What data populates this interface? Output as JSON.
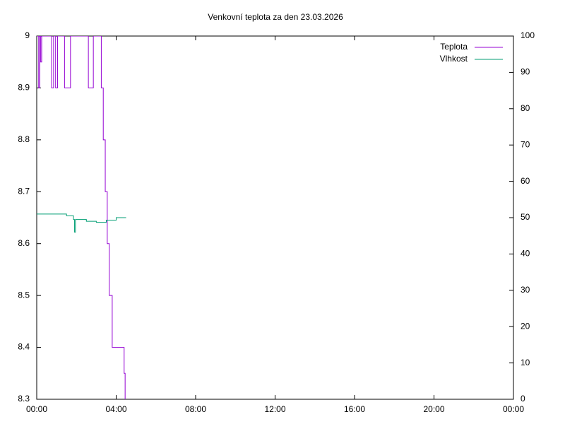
{
  "chart_data": {
    "type": "line",
    "title": "Venkovní teplota za den 23.03.2026",
    "steps": true,
    "legend": "top-right",
    "xlim": [
      0,
      24
    ],
    "xticks": [
      {
        "value": 0,
        "label": "00:00"
      },
      {
        "value": 4,
        "label": "04:00"
      },
      {
        "value": 8,
        "label": "08:00"
      },
      {
        "value": 12,
        "label": "12:00"
      },
      {
        "value": 16,
        "label": "16:00"
      },
      {
        "value": 20,
        "label": "20:00"
      },
      {
        "value": 24,
        "label": "00:00"
      }
    ],
    "ylim": [
      8.3,
      9
    ],
    "yticks": [
      8.3,
      8.4,
      8.5,
      8.6,
      8.7,
      8.8,
      8.9,
      9
    ],
    "y2lim": [
      0,
      100
    ],
    "y2ticks": [
      0,
      10,
      20,
      30,
      40,
      50,
      60,
      70,
      80,
      90,
      100
    ],
    "series": [
      {
        "name": "Teplota",
        "color": "#9400d3",
        "x": [
          0,
          0.1,
          0.15,
          0.2,
          0.25,
          0.75,
          0.85,
          0.95,
          1.05,
          1.4,
          1.7,
          2.6,
          2.85,
          3.25,
          3.35,
          3.45,
          3.55,
          3.65,
          3.8,
          4.4,
          4.45
        ],
        "values": [
          9,
          8.9,
          9,
          8.95,
          9,
          8.9,
          9,
          8.9,
          9,
          8.9,
          9,
          8.9,
          9,
          8.9,
          8.8,
          8.7,
          8.6,
          8.5,
          8.4,
          8.35,
          8.3
        ]
      },
      {
        "name": "Vlhkost",
        "color": "#009e73",
        "axis": "y2",
        "x": [
          0,
          0.5,
          1.0,
          1.5,
          1.85,
          1.9,
          1.95,
          2.5,
          3.0,
          3.5,
          4.0,
          4.5
        ],
        "values": [
          51,
          51,
          51,
          50.5,
          49.5,
          46,
          49.5,
          49,
          48.7,
          49.3,
          50,
          50
        ]
      }
    ]
  }
}
